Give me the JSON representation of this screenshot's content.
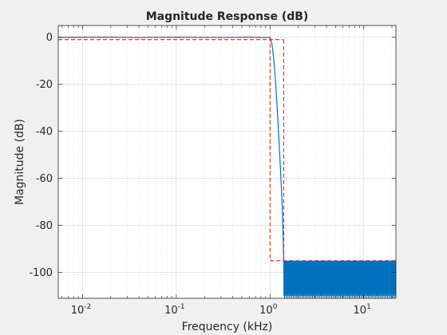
{
  "chart_data": {
    "type": "line",
    "title": "Magnitude Response (dB)",
    "xlabel": "Frequency (kHz)",
    "ylabel": "Magnitude (dB)",
    "xscale": "log",
    "xlim": [
      0.0055,
      22.05
    ],
    "ylim": [
      -111,
      5
    ],
    "grid": true,
    "minor_grid_x": true,
    "yticks": [
      0,
      -20,
      -40,
      -60,
      -80,
      -100
    ],
    "ytick_labels": [
      "0",
      "-20",
      "-40",
      "-60",
      "-80",
      "-100"
    ],
    "xticks": [
      0.01,
      0.1,
      1,
      10
    ],
    "xtick_labels": [
      {
        "base": "10",
        "exp": "-2"
      },
      {
        "base": "10",
        "exp": "-1"
      },
      {
        "base": "10",
        "exp": "0"
      },
      {
        "base": "10",
        "exp": "1"
      }
    ],
    "colors": {
      "response": "#0072bd",
      "mask": "#d62728",
      "grid": "#dfdfdf",
      "axes_bg": "#ffffff",
      "figure_bg": "#f0f0f0"
    },
    "series": [
      {
        "line_style": "solid",
        "passband": {
          "x": [
            0.0055,
            0.02,
            0.04,
            0.1,
            0.3,
            0.6,
            0.9,
            1.0
          ],
          "y": [
            0,
            0.1,
            -0.1,
            0.1,
            -0.1,
            0.1,
            -0.1,
            0
          ]
        },
        "transition": {
          "x": [
            1.0,
            1.05,
            1.1,
            1.15,
            1.2,
            1.25,
            1.3,
            1.35,
            1.38,
            1.4
          ],
          "y": [
            0,
            -3,
            -10,
            -20,
            -32,
            -45,
            -58,
            -72,
            -85,
            -95
          ]
        },
        "stopband": {
          "x_range": [
            1.4,
            22.05
          ],
          "y_top": -95,
          "y_floor": -111
        }
      },
      {
        "line_style": "dashed",
        "x": [
          0.0055,
          1.0,
          1.0,
          1.0,
          1.0,
          22.05
        ],
        "y": [
          0,
          0,
          -95,
          -1,
          -95,
          -95
        ],
        "segments": [
          {
            "x": [
              0.0055,
              1.0
            ],
            "y": [
              0,
              0
            ]
          },
          {
            "x": [
              0.0055,
              1.4
            ],
            "y": [
              -1,
              -1
            ]
          },
          {
            "x": [
              1.0,
              1.0
            ],
            "y": [
              0,
              -95
            ]
          },
          {
            "x": [
              1.4,
              1.4
            ],
            "y": [
              -1,
              -95
            ]
          },
          {
            "x": [
              1.0,
              22.05
            ],
            "y": [
              -95,
              -95
            ]
          }
        ]
      }
    ]
  }
}
